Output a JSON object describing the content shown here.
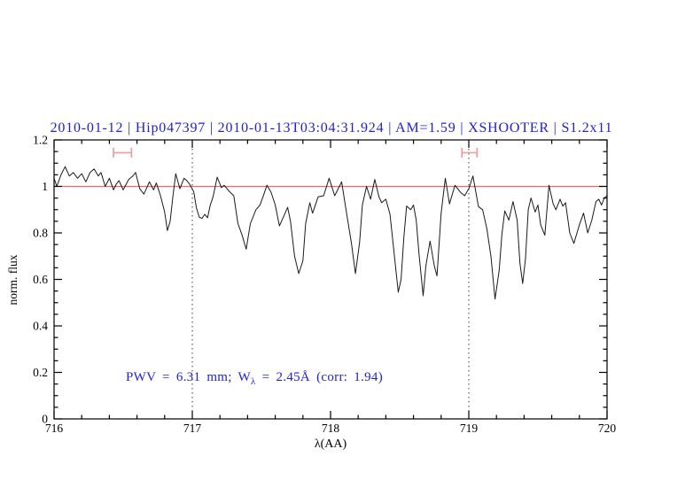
{
  "colors": {
    "accent_blue": "#2222cc",
    "continuum_red": "#e96a6a",
    "marker_red": "#f29b9b",
    "spectrum_black": "#1a1a1a"
  },
  "chart_data": {
    "type": "line",
    "title": "2010-01-12 | Hip047397 | 2010-01-13T03:04:31.924 | AM=1.59 | XSHOOTER | S1.2x11",
    "xlabel": "λ(AA)",
    "ylabel": "norm. flux",
    "xlim": [
      716,
      720
    ],
    "ylim": [
      0,
      1.2
    ],
    "grid": "off",
    "legend": "none",
    "xticks": {
      "major": [
        716,
        717,
        718,
        719,
        720
      ],
      "labels": [
        "716",
        "717",
        "718",
        "719",
        "720"
      ],
      "minor_step": 0.2
    },
    "yticks": {
      "major": [
        0,
        0.2,
        0.4,
        0.6,
        0.8,
        1,
        1.2
      ],
      "labels": [
        "0",
        "0.2",
        "0.4",
        "0.6",
        "0.8",
        "1",
        "1.2"
      ],
      "minor_step": 0.05
    },
    "dotted_vlines": [
      717,
      719
    ],
    "continuum_level": 1.0,
    "interval_markers": [
      {
        "x_start": 716.43,
        "x_end": 716.56,
        "y": 1.145
      },
      {
        "x_start": 718.95,
        "x_end": 719.06,
        "y": 1.145
      }
    ],
    "annotation": {
      "part1": "PWV = 6.31 mm; W",
      "sub": "λ",
      "part2": " = 2.45Å (corr: 1.94)"
    },
    "series": [
      {
        "name": "telluric-spectrum",
        "points": [
          [
            716.0,
            1.035
          ],
          [
            716.02,
            1.0
          ],
          [
            716.05,
            1.05
          ],
          [
            716.08,
            1.085
          ],
          [
            716.11,
            1.045
          ],
          [
            716.14,
            1.06
          ],
          [
            716.17,
            1.035
          ],
          [
            716.2,
            1.055
          ],
          [
            716.23,
            1.02
          ],
          [
            716.26,
            1.06
          ],
          [
            716.29,
            1.075
          ],
          [
            716.32,
            1.045
          ],
          [
            716.34,
            1.06
          ],
          [
            716.37,
            1.0
          ],
          [
            716.4,
            1.035
          ],
          [
            716.43,
            0.985
          ],
          [
            716.45,
            1.01
          ],
          [
            716.47,
            1.025
          ],
          [
            716.5,
            0.985
          ],
          [
            716.54,
            1.03
          ],
          [
            716.57,
            1.045
          ],
          [
            716.59,
            1.06
          ],
          [
            716.62,
            0.99
          ],
          [
            716.65,
            0.967
          ],
          [
            716.69,
            1.02
          ],
          [
            716.72,
            0.985
          ],
          [
            716.74,
            1.015
          ],
          [
            716.77,
            0.96
          ],
          [
            716.8,
            0.89
          ],
          [
            716.82,
            0.81
          ],
          [
            716.84,
            0.85
          ],
          [
            716.86,
            0.96
          ],
          [
            716.88,
            1.055
          ],
          [
            716.91,
            0.99
          ],
          [
            716.94,
            1.035
          ],
          [
            716.96,
            1.025
          ],
          [
            716.98,
            1.01
          ],
          [
            717.01,
            0.977
          ],
          [
            717.03,
            0.907
          ],
          [
            717.05,
            0.868
          ],
          [
            717.07,
            0.862
          ],
          [
            717.09,
            0.88
          ],
          [
            717.11,
            0.865
          ],
          [
            717.13,
            0.92
          ],
          [
            717.15,
            0.955
          ],
          [
            717.18,
            1.04
          ],
          [
            717.21,
            0.995
          ],
          [
            717.23,
            1.005
          ],
          [
            717.27,
            0.977
          ],
          [
            717.3,
            0.96
          ],
          [
            717.33,
            0.84
          ],
          [
            717.36,
            0.79
          ],
          [
            717.39,
            0.73
          ],
          [
            717.42,
            0.84
          ],
          [
            717.46,
            0.9
          ],
          [
            717.49,
            0.92
          ],
          [
            717.52,
            0.97
          ],
          [
            717.54,
            1.005
          ],
          [
            717.57,
            0.975
          ],
          [
            717.6,
            0.92
          ],
          [
            717.63,
            0.83
          ],
          [
            717.66,
            0.87
          ],
          [
            717.69,
            0.91
          ],
          [
            717.71,
            0.85
          ],
          [
            717.74,
            0.7
          ],
          [
            717.77,
            0.625
          ],
          [
            717.8,
            0.68
          ],
          [
            717.82,
            0.84
          ],
          [
            717.85,
            0.93
          ],
          [
            717.87,
            0.885
          ],
          [
            717.91,
            0.955
          ],
          [
            717.95,
            0.96
          ],
          [
            717.99,
            1.035
          ],
          [
            718.03,
            0.96
          ],
          [
            718.08,
            1.02
          ],
          [
            718.12,
            0.87
          ],
          [
            718.15,
            0.76
          ],
          [
            718.18,
            0.625
          ],
          [
            718.21,
            0.76
          ],
          [
            718.23,
            0.92
          ],
          [
            718.26,
            1.0
          ],
          [
            718.29,
            0.945
          ],
          [
            718.32,
            1.03
          ],
          [
            718.35,
            0.955
          ],
          [
            718.37,
            0.93
          ],
          [
            718.4,
            0.945
          ],
          [
            718.43,
            0.88
          ],
          [
            718.46,
            0.71
          ],
          [
            718.49,
            0.545
          ],
          [
            718.51,
            0.6
          ],
          [
            718.53,
            0.78
          ],
          [
            718.55,
            0.915
          ],
          [
            718.58,
            0.9
          ],
          [
            718.6,
            0.92
          ],
          [
            718.62,
            0.855
          ],
          [
            718.64,
            0.71
          ],
          [
            718.67,
            0.53
          ],
          [
            718.69,
            0.66
          ],
          [
            718.72,
            0.765
          ],
          [
            718.75,
            0.66
          ],
          [
            718.77,
            0.615
          ],
          [
            718.8,
            0.885
          ],
          [
            718.83,
            1.035
          ],
          [
            718.86,
            0.925
          ],
          [
            718.9,
            1.005
          ],
          [
            718.94,
            0.975
          ],
          [
            718.97,
            0.96
          ],
          [
            719.0,
            0.99
          ],
          [
            719.03,
            1.045
          ],
          [
            719.07,
            0.913
          ],
          [
            719.1,
            0.9
          ],
          [
            719.13,
            0.82
          ],
          [
            719.16,
            0.7
          ],
          [
            719.19,
            0.515
          ],
          [
            719.22,
            0.64
          ],
          [
            719.24,
            0.795
          ],
          [
            719.26,
            0.895
          ],
          [
            719.29,
            0.855
          ],
          [
            719.32,
            0.935
          ],
          [
            719.35,
            0.855
          ],
          [
            719.37,
            0.67
          ],
          [
            719.39,
            0.582
          ],
          [
            719.41,
            0.69
          ],
          [
            719.43,
            0.9
          ],
          [
            719.45,
            0.95
          ],
          [
            719.48,
            0.89
          ],
          [
            719.5,
            0.92
          ],
          [
            719.52,
            0.835
          ],
          [
            719.55,
            0.79
          ],
          [
            719.58,
            1.005
          ],
          [
            719.61,
            0.925
          ],
          [
            719.63,
            0.9
          ],
          [
            719.66,
            0.945
          ],
          [
            719.68,
            0.915
          ],
          [
            719.7,
            0.93
          ],
          [
            719.73,
            0.8
          ],
          [
            719.76,
            0.755
          ],
          [
            719.8,
            0.835
          ],
          [
            719.83,
            0.885
          ],
          [
            719.86,
            0.8
          ],
          [
            719.89,
            0.855
          ],
          [
            719.92,
            0.935
          ],
          [
            719.94,
            0.945
          ],
          [
            719.96,
            0.92
          ],
          [
            719.98,
            0.95
          ],
          [
            720.0,
            0.96
          ]
        ]
      }
    ]
  }
}
